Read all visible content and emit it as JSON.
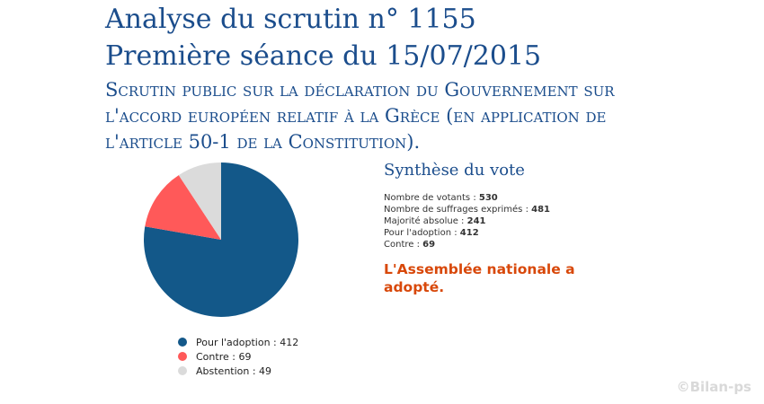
{
  "header": {
    "title_line1": "Analyse du scrutin n° 1155",
    "title_line2": "Première séance du 15/07/2015",
    "subtitle": "Scrutin public sur la déclaration du Gouvernement sur l'accord européen relatif à la Grèce (en application de l'article 50-1 de la Constitution)."
  },
  "synthesis": {
    "title": "Synthèse du vote",
    "rows": [
      {
        "label": "Nombre de votants :",
        "value": "530"
      },
      {
        "label": "Nombre de suffrages exprimés :",
        "value": "481"
      },
      {
        "label": "Majorité absolue :",
        "value": "241"
      },
      {
        "label": "Pour l'adoption :",
        "value": "412"
      },
      {
        "label": "Contre :",
        "value": "69"
      }
    ],
    "result": "L'Assemblée nationale a adopté."
  },
  "watermark": "©Bilan-ps",
  "chart_data": {
    "type": "pie",
    "slices": [
      {
        "label": "Pour l'adoption : 412",
        "value": 412,
        "color": "#135889"
      },
      {
        "label": "Contre : 69",
        "value": 69,
        "color": "#ff5959"
      },
      {
        "label": "Abstention : 49",
        "value": 49,
        "color": "#dbdbdb"
      }
    ],
    "legend_position": "bottom"
  }
}
